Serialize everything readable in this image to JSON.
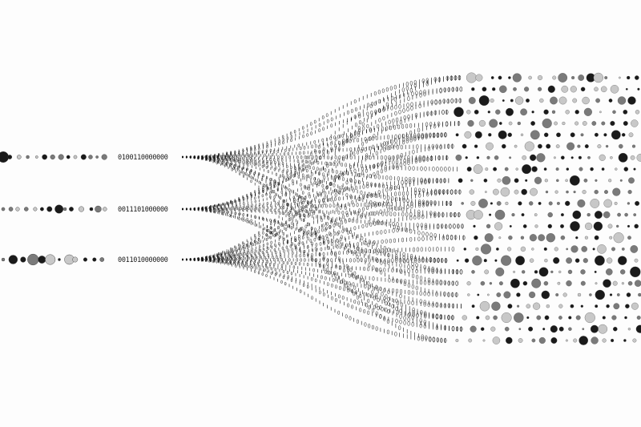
{
  "artwork": {
    "input_streams": [
      {
        "bits": "0100110000000"
      },
      {
        "bits": "0011101000000"
      },
      {
        "bits": "0011010000000"
      }
    ],
    "output_stream_count": 24,
    "colors": {
      "background": "#fdfdfd",
      "ink": "#1a1a1a",
      "dot_light": "#c8c8c8",
      "dot_mid": "#7a7a7a"
    }
  }
}
